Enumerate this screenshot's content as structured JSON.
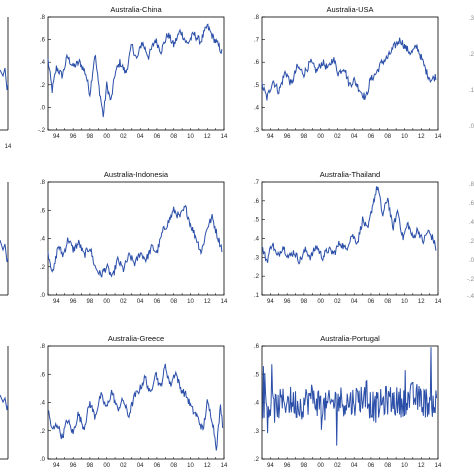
{
  "chart_data": [
    {
      "type": "line",
      "title": "Australia-China",
      "x": [
        "94",
        "96",
        "98",
        "00",
        "02",
        "04",
        "06",
        "08",
        "10",
        "12",
        "14"
      ],
      "yticks": [
        "-.2",
        ".0",
        ".2",
        ".4",
        ".6",
        ".8"
      ],
      "ylim": [
        -0.2,
        0.8
      ],
      "xlim": [
        1993.0,
        2014.0
      ],
      "color": "#2b4fa8",
      "anchors": [
        [
          1993.0,
          0.42
        ],
        [
          1993.5,
          0.15
        ],
        [
          1994.0,
          0.35
        ],
        [
          1994.7,
          0.28
        ],
        [
          1995.3,
          0.45
        ],
        [
          1996.0,
          0.36
        ],
        [
          1996.8,
          0.4
        ],
        [
          1997.5,
          0.3
        ],
        [
          1998.0,
          0.12
        ],
        [
          1998.6,
          0.48
        ],
        [
          1999.0,
          0.22
        ],
        [
          1999.6,
          -0.08
        ],
        [
          2000.0,
          0.2
        ],
        [
          2000.5,
          0.05
        ],
        [
          2001.0,
          0.3
        ],
        [
          2001.6,
          0.4
        ],
        [
          2002.3,
          0.3
        ],
        [
          2003.0,
          0.55
        ],
        [
          2003.6,
          0.42
        ],
        [
          2004.2,
          0.58
        ],
        [
          2005.0,
          0.45
        ],
        [
          2005.8,
          0.6
        ],
        [
          2006.5,
          0.5
        ],
        [
          2007.3,
          0.65
        ],
        [
          2008.0,
          0.55
        ],
        [
          2008.8,
          0.68
        ],
        [
          2009.6,
          0.56
        ],
        [
          2010.4,
          0.65
        ],
        [
          2011.2,
          0.58
        ],
        [
          2012.0,
          0.72
        ],
        [
          2012.7,
          0.62
        ],
        [
          2013.3,
          0.55
        ],
        [
          2013.8,
          0.48
        ]
      ]
    },
    {
      "type": "line",
      "title": "Australia-USA",
      "x": [
        "94",
        "96",
        "98",
        "00",
        "02",
        "04",
        "06",
        "08",
        "10",
        "12",
        "14"
      ],
      "yticks": [
        ".3",
        ".4",
        ".5",
        ".6",
        ".7",
        ".8"
      ],
      "ylim": [
        0.3,
        0.8
      ],
      "xlim": [
        1993.0,
        2014.0
      ],
      "color": "#2b4fa8",
      "anchors": [
        [
          1993.0,
          0.5
        ],
        [
          1993.6,
          0.44
        ],
        [
          1994.3,
          0.52
        ],
        [
          1995.0,
          0.47
        ],
        [
          1995.8,
          0.56
        ],
        [
          1996.5,
          0.5
        ],
        [
          1997.2,
          0.58
        ],
        [
          1998.0,
          0.55
        ],
        [
          1998.8,
          0.6
        ],
        [
          1999.5,
          0.56
        ],
        [
          2000.2,
          0.6
        ],
        [
          2000.9,
          0.57
        ],
        [
          2001.5,
          0.62
        ],
        [
          2002.1,
          0.55
        ],
        [
          2002.8,
          0.58
        ],
        [
          2003.4,
          0.5
        ],
        [
          2004.0,
          0.52
        ],
        [
          2004.8,
          0.47
        ],
        [
          2005.4,
          0.44
        ],
        [
          2005.9,
          0.52
        ],
        [
          2006.6,
          0.55
        ],
        [
          2007.3,
          0.6
        ],
        [
          2008.0,
          0.62
        ],
        [
          2008.8,
          0.67
        ],
        [
          2009.5,
          0.7
        ],
        [
          2010.2,
          0.66
        ],
        [
          2010.8,
          0.64
        ],
        [
          2011.5,
          0.67
        ],
        [
          2012.2,
          0.6
        ],
        [
          2012.7,
          0.55
        ],
        [
          2013.2,
          0.52
        ],
        [
          2013.8,
          0.54
        ]
      ]
    },
    {
      "type": "line",
      "title": "Australia-Indonesia",
      "x": [
        "94",
        "96",
        "98",
        "00",
        "02",
        "04",
        "06",
        "08",
        "10",
        "12",
        "14"
      ],
      "yticks": [
        ".0",
        ".2",
        ".4",
        ".6",
        ".8"
      ],
      "ylim": [
        0.0,
        0.8
      ],
      "xlim": [
        1993.0,
        2014.0
      ],
      "color": "#2b4fa8",
      "anchors": [
        [
          1993.0,
          0.3
        ],
        [
          1993.6,
          0.15
        ],
        [
          1994.2,
          0.35
        ],
        [
          1994.8,
          0.28
        ],
        [
          1995.4,
          0.4
        ],
        [
          1996.0,
          0.32
        ],
        [
          1996.7,
          0.37
        ],
        [
          1997.3,
          0.28
        ],
        [
          1998.0,
          0.34
        ],
        [
          1998.6,
          0.2
        ],
        [
          1999.3,
          0.14
        ],
        [
          2000.0,
          0.2
        ],
        [
          2000.7,
          0.12
        ],
        [
          2001.3,
          0.25
        ],
        [
          2002.0,
          0.18
        ],
        [
          2002.7,
          0.28
        ],
        [
          2003.4,
          0.22
        ],
        [
          2004.0,
          0.3
        ],
        [
          2004.7,
          0.25
        ],
        [
          2005.4,
          0.34
        ],
        [
          2006.0,
          0.3
        ],
        [
          2006.7,
          0.45
        ],
        [
          2007.4,
          0.52
        ],
        [
          2008.0,
          0.6
        ],
        [
          2008.7,
          0.55
        ],
        [
          2009.4,
          0.62
        ],
        [
          2010.0,
          0.5
        ],
        [
          2010.7,
          0.4
        ],
        [
          2011.3,
          0.3
        ],
        [
          2012.0,
          0.48
        ],
        [
          2012.6,
          0.55
        ],
        [
          2013.2,
          0.42
        ],
        [
          2013.8,
          0.32
        ]
      ]
    },
    {
      "type": "line",
      "title": "Australia-Thailand",
      "x": [
        "94",
        "96",
        "98",
        "00",
        "02",
        "04",
        "06",
        "08",
        "10",
        "12",
        "14"
      ],
      "yticks": [
        ".1",
        ".2",
        ".3",
        ".4",
        ".5",
        ".6",
        ".7"
      ],
      "ylim": [
        0.1,
        0.7
      ],
      "xlim": [
        1993.0,
        2014.0
      ],
      "color": "#2b4fa8",
      "anchors": [
        [
          1993.0,
          0.35
        ],
        [
          1993.6,
          0.28
        ],
        [
          1994.2,
          0.38
        ],
        [
          1994.8,
          0.3
        ],
        [
          1995.5,
          0.36
        ],
        [
          1996.2,
          0.3
        ],
        [
          1996.8,
          0.33
        ],
        [
          1997.5,
          0.28
        ],
        [
          1998.2,
          0.34
        ],
        [
          1998.8,
          0.3
        ],
        [
          1999.5,
          0.36
        ],
        [
          2000.2,
          0.3
        ],
        [
          2000.9,
          0.34
        ],
        [
          2001.6,
          0.32
        ],
        [
          2002.3,
          0.38
        ],
        [
          2003.0,
          0.34
        ],
        [
          2003.7,
          0.42
        ],
        [
          2004.4,
          0.38
        ],
        [
          2005.0,
          0.5
        ],
        [
          2005.6,
          0.44
        ],
        [
          2006.2,
          0.58
        ],
        [
          2006.8,
          0.68
        ],
        [
          2007.4,
          0.52
        ],
        [
          2008.0,
          0.62
        ],
        [
          2008.6,
          0.45
        ],
        [
          2009.2,
          0.55
        ],
        [
          2009.8,
          0.4
        ],
        [
          2010.4,
          0.48
        ],
        [
          2011.0,
          0.4
        ],
        [
          2011.6,
          0.45
        ],
        [
          2012.2,
          0.38
        ],
        [
          2012.8,
          0.44
        ],
        [
          2013.4,
          0.4
        ],
        [
          2013.8,
          0.34
        ]
      ]
    },
    {
      "type": "line",
      "title": "Australia-Greece",
      "x": [
        "94",
        "96",
        "98",
        "00",
        "02",
        "04",
        "06",
        "08",
        "10",
        "12",
        "14"
      ],
      "yticks": [
        ".0",
        ".2",
        ".4",
        ".6",
        ".8"
      ],
      "ylim": [
        0.0,
        0.8
      ],
      "xlim": [
        1993.0,
        2014.0
      ],
      "color": "#2b4fa8",
      "anchors": [
        [
          1993.0,
          0.35
        ],
        [
          1993.5,
          0.2
        ],
        [
          1994.1,
          0.25
        ],
        [
          1994.7,
          0.15
        ],
        [
          1995.3,
          0.28
        ],
        [
          1996.0,
          0.18
        ],
        [
          1996.6,
          0.32
        ],
        [
          1997.3,
          0.22
        ],
        [
          1998.0,
          0.4
        ],
        [
          1998.6,
          0.3
        ],
        [
          1999.3,
          0.45
        ],
        [
          2000.0,
          0.36
        ],
        [
          2000.6,
          0.48
        ],
        [
          2001.3,
          0.35
        ],
        [
          2002.0,
          0.42
        ],
        [
          2002.6,
          0.3
        ],
        [
          2003.3,
          0.44
        ],
        [
          2004.0,
          0.5
        ],
        [
          2004.6,
          0.58
        ],
        [
          2005.2,
          0.45
        ],
        [
          2005.8,
          0.62
        ],
        [
          2006.4,
          0.5
        ],
        [
          2007.0,
          0.66
        ],
        [
          2007.6,
          0.52
        ],
        [
          2008.2,
          0.62
        ],
        [
          2008.8,
          0.5
        ],
        [
          2009.5,
          0.45
        ],
        [
          2010.2,
          0.35
        ],
        [
          2010.8,
          0.3
        ],
        [
          2011.5,
          0.2
        ],
        [
          2012.0,
          0.4
        ],
        [
          2012.6,
          0.28
        ],
        [
          2013.1,
          0.08
        ],
        [
          2013.6,
          0.38
        ],
        [
          2013.9,
          0.2
        ]
      ]
    },
    {
      "type": "line",
      "title": "Australia-Portugal",
      "x": [
        "94",
        "96",
        "98",
        "00",
        "02",
        "04",
        "06",
        "08",
        "10",
        "12",
        "14"
      ],
      "yticks": [
        ".2",
        ".3",
        ".4",
        ".5",
        ".6"
      ],
      "ylim": [
        0.2,
        0.6
      ],
      "xlim": [
        1993.0,
        2014.0
      ],
      "color": "#2b4fa8",
      "anchors": [
        [
          1993.0,
          0.4
        ],
        [
          1994.5,
          0.38
        ],
        [
          1996.0,
          0.41
        ],
        [
          1997.5,
          0.39
        ],
        [
          1999.0,
          0.42
        ],
        [
          2000.5,
          0.38
        ],
        [
          2002.0,
          0.41
        ],
        [
          2003.5,
          0.4
        ],
        [
          2005.0,
          0.42
        ],
        [
          2006.5,
          0.38
        ],
        [
          2008.0,
          0.41
        ],
        [
          2009.5,
          0.4
        ],
        [
          2011.0,
          0.42
        ],
        [
          2012.5,
          0.4
        ],
        [
          2013.9,
          0.4
        ]
      ],
      "noise": 0.055
    }
  ]
}
